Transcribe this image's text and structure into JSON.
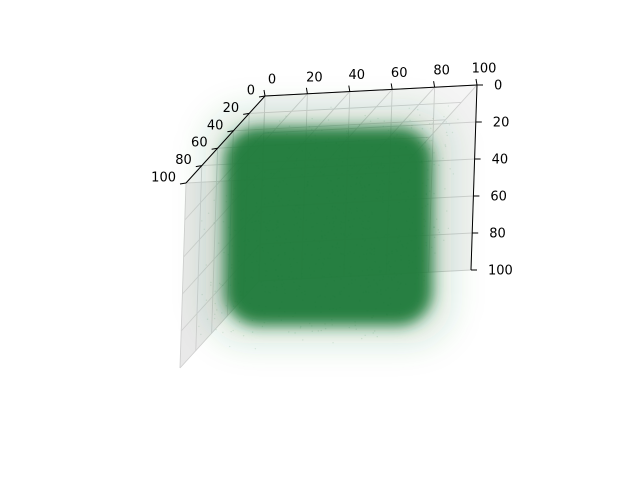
{
  "chart_data": {
    "type": "scatter",
    "projection": "3d",
    "title": "",
    "xlabel": "",
    "ylabel": "",
    "zlabel": "",
    "xlim": [
      0,
      100
    ],
    "ylim": [
      0,
      100
    ],
    "zlim": [
      0,
      100
    ],
    "x_ticks": [
      "0",
      "20",
      "40",
      "60",
      "80",
      "100"
    ],
    "y_ticks": [
      "0",
      "20",
      "40",
      "60",
      "80",
      "100"
    ],
    "z_ticks": [
      "0",
      "20",
      "40",
      "60",
      "80",
      "100"
    ],
    "grid": true,
    "legend": "none",
    "point_color": "#1a7a3a",
    "point_alpha": "very low (dense cloud)",
    "cloud": {
      "shape": "rounded cube",
      "center": [
        50,
        50,
        50
      ],
      "extent": [
        [
          15,
          85
        ],
        [
          15,
          85
        ],
        [
          15,
          85
        ]
      ],
      "density": "uniform core with diffuse halo"
    }
  }
}
